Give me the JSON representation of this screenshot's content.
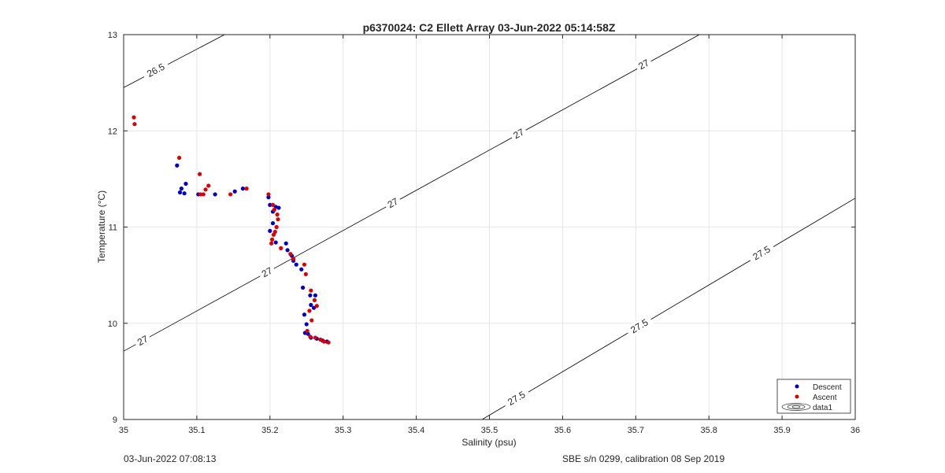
{
  "chart_data": {
    "type": "scatter",
    "title": "p6370024: C2 Ellett Array 03-Jun-2022 05:14:58Z",
    "xlabel": "Salinity (psu)",
    "ylabel": "Temperature (°C)",
    "xlim": [
      35,
      36
    ],
    "ylim": [
      9,
      13
    ],
    "xticks": [
      "35",
      "35.1",
      "35.2",
      "35.3",
      "35.4",
      "35.5",
      "35.6",
      "35.7",
      "35.8",
      "35.9",
      "36"
    ],
    "yticks": [
      "9",
      "10",
      "11",
      "12",
      "13"
    ],
    "grid": true,
    "legend_position": "bottom-right",
    "legend": [
      "Descent",
      "Ascent",
      "data1"
    ],
    "colors": {
      "descent": "#0000c8",
      "ascent": "#e00000",
      "contour": "#000000",
      "grid": "#e6e6e6"
    },
    "series": [
      {
        "name": "Descent",
        "x": [
          35.073,
          35.077,
          35.079,
          35.085,
          35.083,
          35.102,
          35.125,
          35.152,
          35.163,
          35.198,
          35.2,
          35.204,
          35.208,
          35.212,
          35.204,
          35.2,
          35.208,
          35.222,
          35.224,
          35.23,
          35.232,
          35.236,
          35.243,
          35.245,
          35.255,
          35.262,
          35.256,
          35.26,
          35.247,
          35.25,
          35.248,
          35.252,
          35.256,
          35.264,
          35.272,
          35.278
        ],
        "y": [
          11.64,
          11.36,
          11.4,
          11.45,
          11.35,
          11.34,
          11.34,
          11.37,
          11.4,
          11.31,
          11.23,
          11.16,
          11.21,
          11.2,
          11.04,
          10.96,
          10.84,
          10.83,
          10.76,
          10.7,
          10.65,
          10.61,
          10.56,
          10.37,
          10.29,
          10.29,
          10.19,
          10.16,
          10.09,
          9.99,
          9.9,
          9.89,
          9.85,
          9.84,
          9.82,
          9.81
        ]
      },
      {
        "name": "Ascent",
        "x": [
          35.014,
          35.015,
          35.076,
          35.104,
          35.105,
          35.109,
          35.112,
          35.116,
          35.146,
          35.168,
          35.198,
          35.204,
          35.206,
          35.21,
          35.211,
          35.209,
          35.207,
          35.205,
          35.203,
          35.202,
          35.215,
          35.228,
          35.232,
          35.247,
          35.249,
          35.256,
          35.261,
          35.264,
          35.254,
          35.257,
          35.251,
          35.255,
          35.262,
          35.269,
          35.274,
          35.28
        ],
        "y": [
          12.14,
          12.07,
          11.72,
          11.55,
          11.34,
          11.34,
          11.39,
          11.43,
          11.34,
          11.4,
          11.34,
          11.23,
          11.18,
          11.13,
          11.08,
          11.0,
          10.95,
          10.92,
          10.87,
          10.83,
          10.78,
          10.72,
          10.67,
          10.61,
          10.51,
          10.34,
          10.24,
          10.18,
          10.13,
          10.03,
          9.92,
          9.86,
          9.85,
          9.83,
          9.81,
          9.8
        ]
      }
    ],
    "contours": [
      {
        "level": "26.5",
        "start": [
          35.0,
          12.45
        ],
        "end": [
          35.138,
          13.0
        ],
        "labels": [
          {
            "text": "26.5",
            "x": 35.044,
            "y": 12.63
          }
        ]
      },
      {
        "level": "27",
        "start": [
          35.0,
          9.71
        ],
        "end": [
          35.787,
          13.0
        ],
        "labels": [
          {
            "text": "27",
            "x": 35.026,
            "y": 9.82
          },
          {
            "text": "27",
            "x": 35.196,
            "y": 10.53
          },
          {
            "text": "27",
            "x": 35.368,
            "y": 11.25
          },
          {
            "text": "27",
            "x": 35.54,
            "y": 11.97
          },
          {
            "text": "27",
            "x": 35.711,
            "y": 12.69
          }
        ]
      },
      {
        "level": "27.5",
        "start": [
          35.49,
          9.0
        ],
        "end": [
          36.0,
          11.3
        ],
        "labels": [
          {
            "text": "27.5",
            "x": 35.537,
            "y": 9.22
          },
          {
            "text": "27.5",
            "x": 35.705,
            "y": 9.97
          },
          {
            "text": "27.5",
            "x": 35.872,
            "y": 10.73
          }
        ]
      }
    ]
  },
  "footer": {
    "left": "03-Jun-2022 07:08:13",
    "right": "SBE s/n 0299, calibration 08 Sep 2019"
  }
}
